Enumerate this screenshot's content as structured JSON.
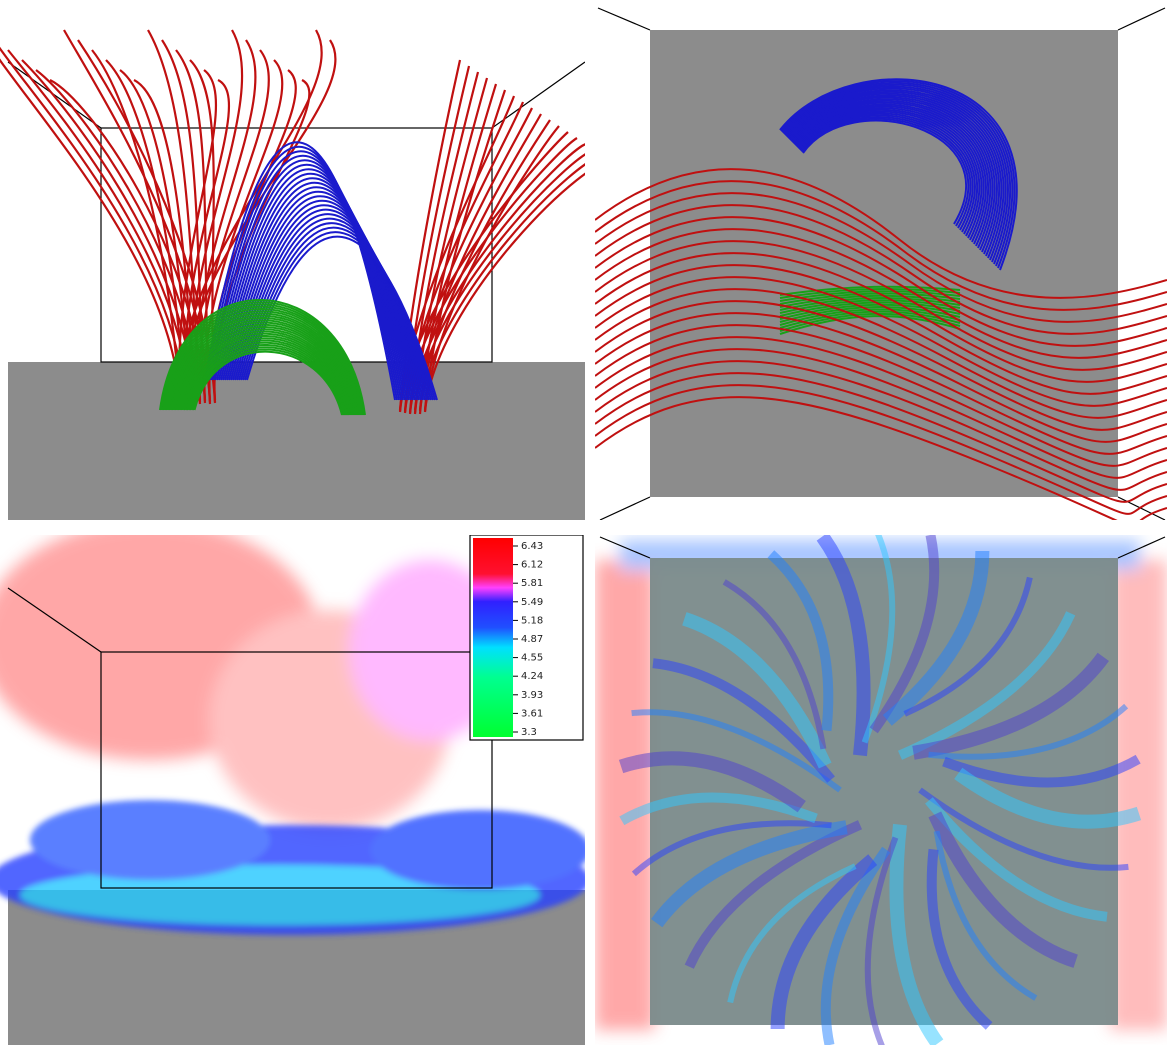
{
  "colorbar": {
    "ticks": [
      6.43,
      6.12,
      5.81,
      5.49,
      5.18,
      4.87,
      4.55,
      4.24,
      3.93,
      3.61,
      3.3
    ]
  }
}
